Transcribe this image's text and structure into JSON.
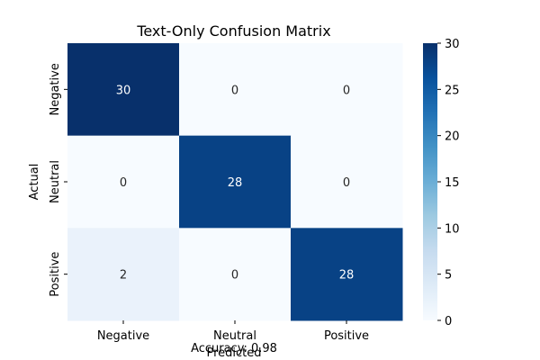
{
  "chart_data": {
    "type": "heatmap",
    "title": "Text-Only Confusion Matrix",
    "xlabel": "Predicted",
    "ylabel": "Actual",
    "footer_text": "Accuracy: 0.98",
    "x_categories": [
      "Negative",
      "Neutral",
      "Positive"
    ],
    "y_categories": [
      "Negative",
      "Neutral",
      "Positive"
    ],
    "matrix": [
      [
        30,
        0,
        0
      ],
      [
        0,
        28,
        0
      ],
      [
        2,
        0,
        28
      ]
    ],
    "colorbar": {
      "min": 0,
      "max": 30,
      "ticks": [
        0,
        5,
        10,
        15,
        20,
        25,
        30
      ],
      "colormap": "Blues"
    }
  }
}
